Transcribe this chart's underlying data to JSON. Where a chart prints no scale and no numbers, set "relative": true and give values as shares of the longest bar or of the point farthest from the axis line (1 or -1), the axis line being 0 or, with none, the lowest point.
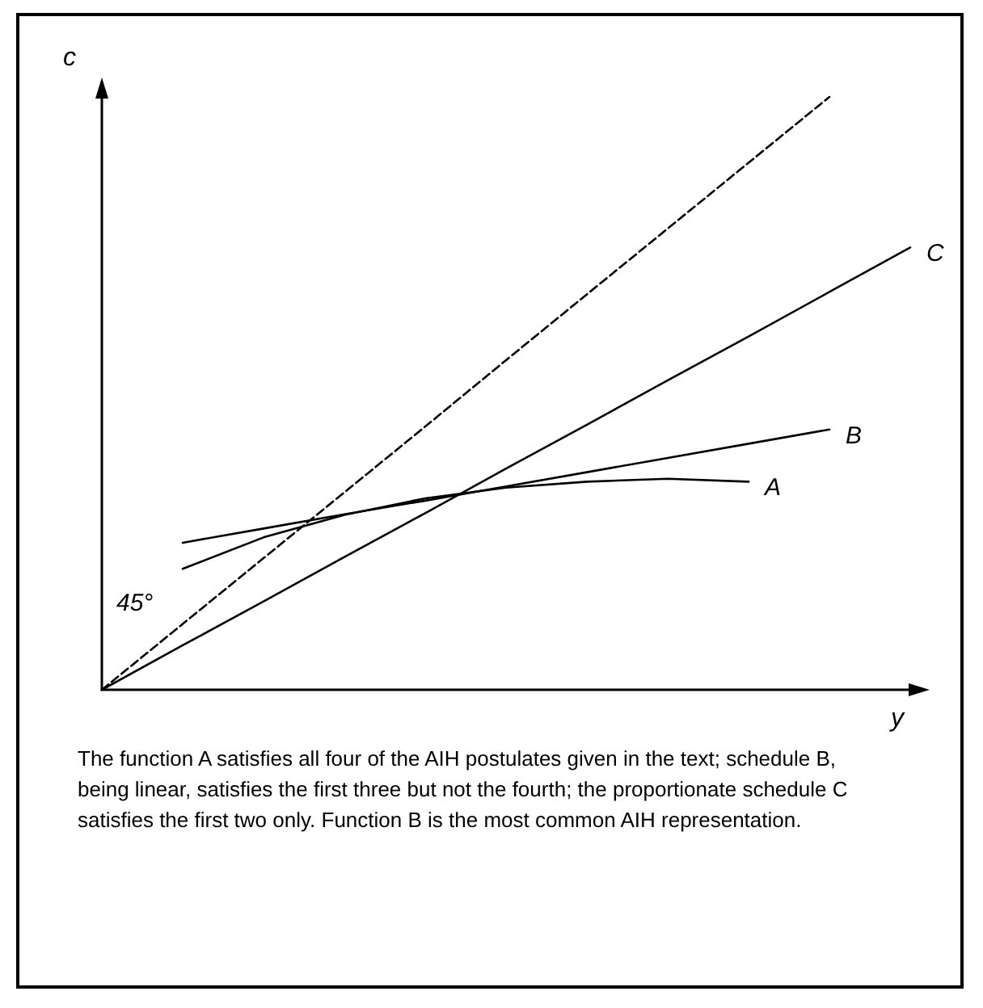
{
  "chart_data": {
    "type": "line",
    "relative": true,
    "xlabel": "y",
    "ylabel": "c",
    "grid": false,
    "legend": false,
    "marker": "none",
    "categories": [
      null,
      null,
      null,
      null,
      null,
      null,
      null,
      null,
      null,
      null,
      null
    ],
    "series": [
      {
        "color": "#000000",
        "line_style": "dashed",
        "values": [
          0,
          0.111,
          0.222,
          0.333,
          0.444,
          0.556,
          0.667,
          0.778,
          0.889,
          1.0,
          null
        ]
      },
      {
        "name": "C",
        "color": "#000000",
        "line_style": "solid",
        "values": [
          0,
          0.075,
          0.149,
          0.224,
          0.298,
          0.373,
          0.447,
          0.522,
          0.596,
          0.671,
          0.746
        ]
      },
      {
        "name": "B",
        "color": "#000000",
        "line_style": "solid",
        "values": [
          null,
          0.248,
          0.272,
          0.296,
          0.319,
          0.343,
          0.367,
          0.391,
          0.415,
          0.439,
          null
        ]
      },
      {
        "name": "A",
        "color": "#000000",
        "line_style": "solid",
        "values": [
          null,
          0.204,
          0.257,
          0.295,
          0.323,
          0.341,
          0.351,
          0.356,
          0.351,
          null,
          null
        ]
      }
    ],
    "annotations": [
      "45°",
      "The function A satisfies all four of the AIH postulates given in the text; schedule B, being linear, satisfies the first three but not the fourth; the proportionate schedule C satisfies the first two only. Function B is the most common AIH representation."
    ]
  }
}
